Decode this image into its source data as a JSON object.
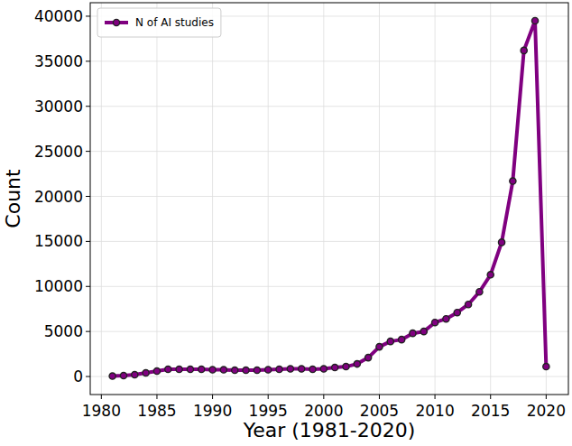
{
  "chart_data": {
    "type": "line",
    "x_label": "Year (1981-2020)",
    "y_label": "Count",
    "x": [
      1981,
      1982,
      1983,
      1984,
      1985,
      1986,
      1987,
      1988,
      1989,
      1990,
      1991,
      1992,
      1993,
      1994,
      1995,
      1996,
      1997,
      1998,
      1999,
      2000,
      2001,
      2002,
      2003,
      2004,
      2005,
      2006,
      2007,
      2008,
      2009,
      2010,
      2011,
      2012,
      2013,
      2014,
      2015,
      2016,
      2017,
      2018,
      2019,
      2020
    ],
    "series": [
      {
        "name": "N of AI studies",
        "color": "#800080",
        "marker": "circle",
        "values": [
          50,
          100,
          200,
          400,
          600,
          800,
          800,
          800,
          800,
          750,
          750,
          700,
          700,
          700,
          750,
          800,
          850,
          850,
          800,
          850,
          1000,
          1100,
          1400,
          2100,
          3300,
          3900,
          4100,
          4800,
          5000,
          6000,
          6400,
          7100,
          8000,
          9400,
          11300,
          14900,
          21700,
          36200,
          39500,
          1100
        ]
      }
    ],
    "xlim": [
      1979,
      2022
    ],
    "xticks": [
      1980,
      1985,
      1990,
      1995,
      2000,
      2005,
      2010,
      2015,
      2020
    ],
    "ylim": [
      -2000,
      41500
    ],
    "yticks": [
      0,
      5000,
      10000,
      15000,
      20000,
      25000,
      30000,
      35000,
      40000
    ],
    "grid": true,
    "legend": "upper-left"
  }
}
